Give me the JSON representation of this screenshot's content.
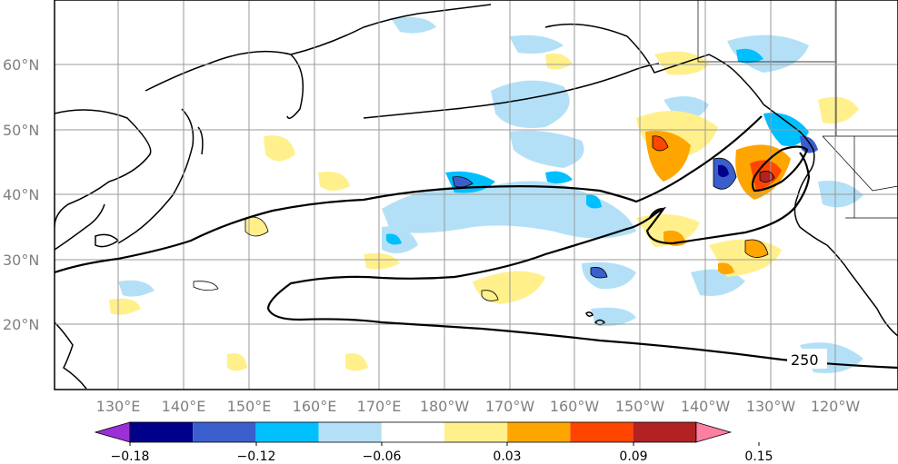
{
  "map": {
    "lat_labels": [
      "60°N",
      "50°N",
      "40°N",
      "30°N",
      "20°N"
    ],
    "lon_labels": [
      "130°E",
      "140°E",
      "150°E",
      "160°E",
      "170°E",
      "180°W",
      "170°W",
      "160°W",
      "150°W",
      "140°W",
      "130°W",
      "120°W"
    ],
    "lat_range": [
      10,
      70
    ],
    "lon_range": [
      122,
      251
    ],
    "contour_label": "250"
  },
  "colorbar": {
    "ticks": [
      "−0.18",
      "−0.12",
      "−0.06",
      "0.03",
      "0.09",
      "0.15"
    ],
    "colors": [
      "#9b30d9",
      "#00008b",
      "#3a5fcd",
      "#00bfff",
      "#b3e0f7",
      "#ffffff",
      "#fff08c",
      "#ffa500",
      "#ff4500",
      "#b22222",
      "#ff7fa0"
    ],
    "extend": "both"
  }
}
